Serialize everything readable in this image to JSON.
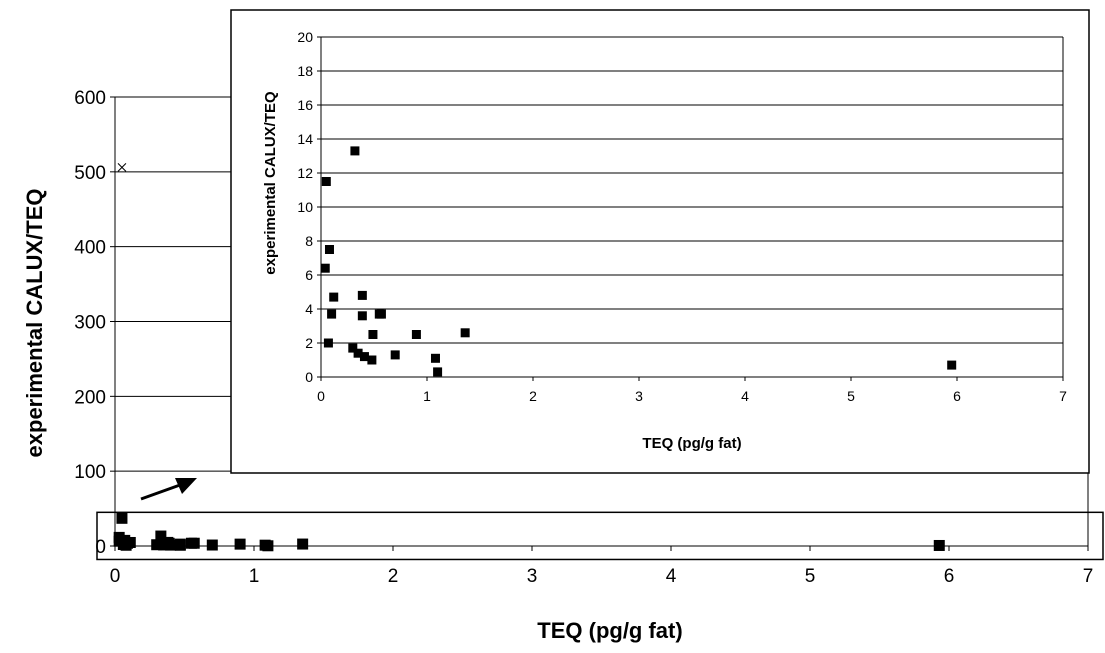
{
  "chart_data": [
    {
      "id": "main",
      "type": "scatter",
      "xlabel": "TEQ (pg/g fat)",
      "ylabel": "experimental CALUX/TEQ",
      "xlim": [
        0,
        7
      ],
      "ylim": [
        0,
        600
      ],
      "xticks": [
        "0",
        "1",
        "2",
        "3",
        "4",
        "5",
        "6",
        "7"
      ],
      "yticks": [
        "0",
        "100",
        "200",
        "300",
        "400",
        "500",
        "600"
      ],
      "grid": "horizontal",
      "marker_colors": {
        "square": "#000000",
        "cross": "#000000"
      },
      "series": [
        {
          "marker": "square",
          "points": [
            [
              0.05,
              37
            ],
            [
              0.03,
              11.5
            ],
            [
              0.07,
              7.5
            ],
            [
              0.03,
              6.4
            ],
            [
              0.11,
              4.7
            ],
            [
              0.09,
              3.7
            ],
            [
              0.06,
              2.0
            ],
            [
              0.08,
              1.0
            ],
            [
              0.33,
              13.3
            ],
            [
              0.38,
              4.8
            ],
            [
              0.39,
              3.6
            ],
            [
              0.3,
              1.7
            ],
            [
              0.35,
              1.4
            ],
            [
              0.4,
              1.2
            ],
            [
              0.47,
              1.0
            ],
            [
              0.47,
              2.5
            ],
            [
              0.55,
              3.7
            ],
            [
              0.57,
              3.7
            ],
            [
              0.7,
              1.3
            ],
            [
              0.9,
              2.5
            ],
            [
              1.08,
              1.1
            ],
            [
              1.1,
              0.3
            ],
            [
              1.35,
              2.6
            ],
            [
              5.93,
              0.7
            ]
          ]
        },
        {
          "marker": "cross",
          "points": [
            [
              0.05,
              506
            ]
          ]
        }
      ],
      "highlight_box": {
        "ylim": [
          -18,
          45
        ]
      }
    },
    {
      "id": "inset",
      "type": "scatter",
      "xlabel": "TEQ (pg/g fat)",
      "ylabel": "experimental CALUX/TEQ",
      "xlim": [
        0,
        7
      ],
      "ylim": [
        0,
        20
      ],
      "xticks": [
        "0",
        "1",
        "2",
        "3",
        "4",
        "5",
        "6",
        "7"
      ],
      "yticks": [
        "0",
        "2",
        "4",
        "6",
        "8",
        "10",
        "12",
        "14",
        "16",
        "18",
        "20"
      ],
      "grid": "horizontal",
      "series": [
        {
          "marker": "square",
          "points": [
            [
              0.05,
              11.5
            ],
            [
              0.08,
              7.5
            ],
            [
              0.04,
              6.4
            ],
            [
              0.12,
              4.7
            ],
            [
              0.1,
              3.7
            ],
            [
              0.07,
              2.0
            ],
            [
              0.32,
              13.3
            ],
            [
              0.39,
              4.8
            ],
            [
              0.39,
              3.6
            ],
            [
              0.3,
              1.7
            ],
            [
              0.35,
              1.4
            ],
            [
              0.41,
              1.2
            ],
            [
              0.48,
              1.0
            ],
            [
              0.49,
              2.5
            ],
            [
              0.55,
              3.7
            ],
            [
              0.57,
              3.7
            ],
            [
              0.7,
              1.3
            ],
            [
              0.9,
              2.5
            ],
            [
              1.08,
              1.1
            ],
            [
              1.1,
              0.3
            ],
            [
              1.36,
              2.6
            ],
            [
              5.95,
              0.7
            ]
          ]
        }
      ]
    }
  ]
}
